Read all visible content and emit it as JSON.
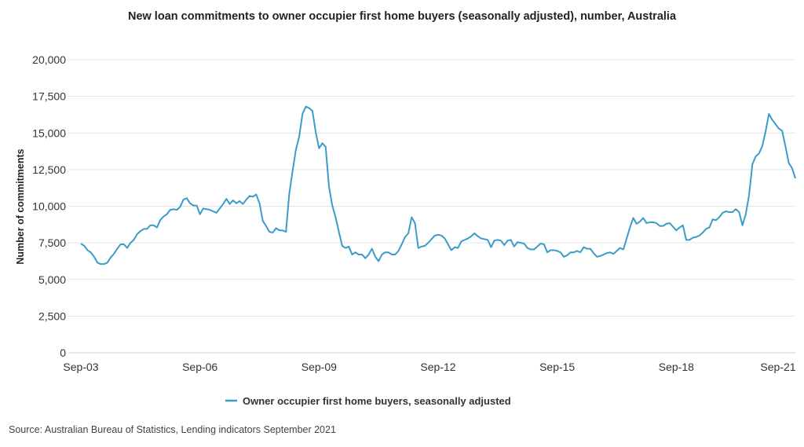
{
  "chart_data": {
    "type": "line",
    "title": "New loan commitments to owner occupier first home buyers (seasonally adjusted), number, Australia",
    "ylabel": "Number of commitments",
    "xlabel": "",
    "ylim": [
      0,
      20000
    ],
    "y_ticks": [
      0,
      2500,
      5000,
      7500,
      10000,
      12500,
      15000,
      17500,
      20000
    ],
    "y_tick_labels": [
      "0",
      "2,500",
      "5,000",
      "7,500",
      "10,000",
      "12,500",
      "15,000",
      "17,500",
      "20,000"
    ],
    "x_tick_labels": [
      "Sep-03",
      "Sep-06",
      "Sep-09",
      "Sep-12",
      "Sep-15",
      "Sep-18",
      "Sep-21"
    ],
    "grid": true,
    "legend_position": "bottom-center",
    "series_color": "#3a9cc8",
    "x_start": "Sep-03",
    "x_end": "Sep-21",
    "series": [
      {
        "name": "Owner occupier first home buyers, seasonally adjusted",
        "values": [
          7450,
          7300,
          7000,
          6850,
          6550,
          6150,
          6050,
          6050,
          6150,
          6500,
          6750,
          7100,
          7400,
          7400,
          7150,
          7500,
          7700,
          8100,
          8300,
          8450,
          8450,
          8700,
          8700,
          8550,
          9050,
          9300,
          9450,
          9750,
          9800,
          9750,
          9950,
          10450,
          10550,
          10200,
          10050,
          10050,
          9450,
          9850,
          9800,
          9750,
          9650,
          9550,
          9850,
          10150,
          10500,
          10150,
          10400,
          10200,
          10350,
          10150,
          10450,
          10700,
          10650,
          10800,
          10200,
          9000,
          8650,
          8250,
          8200,
          8500,
          8350,
          8350,
          8250,
          10850,
          12400,
          13850,
          14750,
          16300,
          16800,
          16700,
          16500,
          15050,
          13950,
          14300,
          14050,
          11350,
          10050,
          9250,
          8250,
          7300,
          7150,
          7250,
          6700,
          6850,
          6700,
          6700,
          6450,
          6700,
          7100,
          6550,
          6250,
          6700,
          6850,
          6850,
          6700,
          6700,
          6950,
          7400,
          7900,
          8150,
          9250,
          8850,
          7150,
          7250,
          7300,
          7500,
          7750,
          8000,
          8050,
          8000,
          7800,
          7400,
          7000,
          7200,
          7150,
          7600,
          7700,
          7800,
          7950,
          8150,
          7950,
          7800,
          7750,
          7700,
          7200,
          7650,
          7700,
          7650,
          7350,
          7650,
          7700,
          7250,
          7550,
          7500,
          7450,
          7150,
          7050,
          7050,
          7250,
          7450,
          7400,
          6850,
          7000,
          7000,
          6950,
          6850,
          6550,
          6650,
          6850,
          6850,
          6950,
          6850,
          7200,
          7100,
          7100,
          6800,
          6550,
          6600,
          6700,
          6800,
          6850,
          6750,
          6950,
          7150,
          7050,
          7800,
          8550,
          9200,
          8800,
          8950,
          9200,
          8850,
          8900,
          8900,
          8850,
          8650,
          8650,
          8800,
          8850,
          8600,
          8350,
          8550,
          8700,
          7700,
          7700,
          7850,
          7900,
          8000,
          8200,
          8450,
          8550,
          9100,
          9050,
          9250,
          9550,
          9650,
          9600,
          9600,
          9800,
          9600,
          8700,
          9450,
          10750,
          12850,
          13400,
          13600,
          14100,
          15100,
          16300,
          15900,
          15600,
          15300,
          15150,
          14100,
          12950,
          12600,
          11900
        ]
      }
    ]
  },
  "legend": {
    "label": "Owner occupier first home buyers, seasonally adjusted"
  },
  "footer": {
    "source": "Source: Australian Bureau of Statistics, Lending indicators September 2021"
  }
}
